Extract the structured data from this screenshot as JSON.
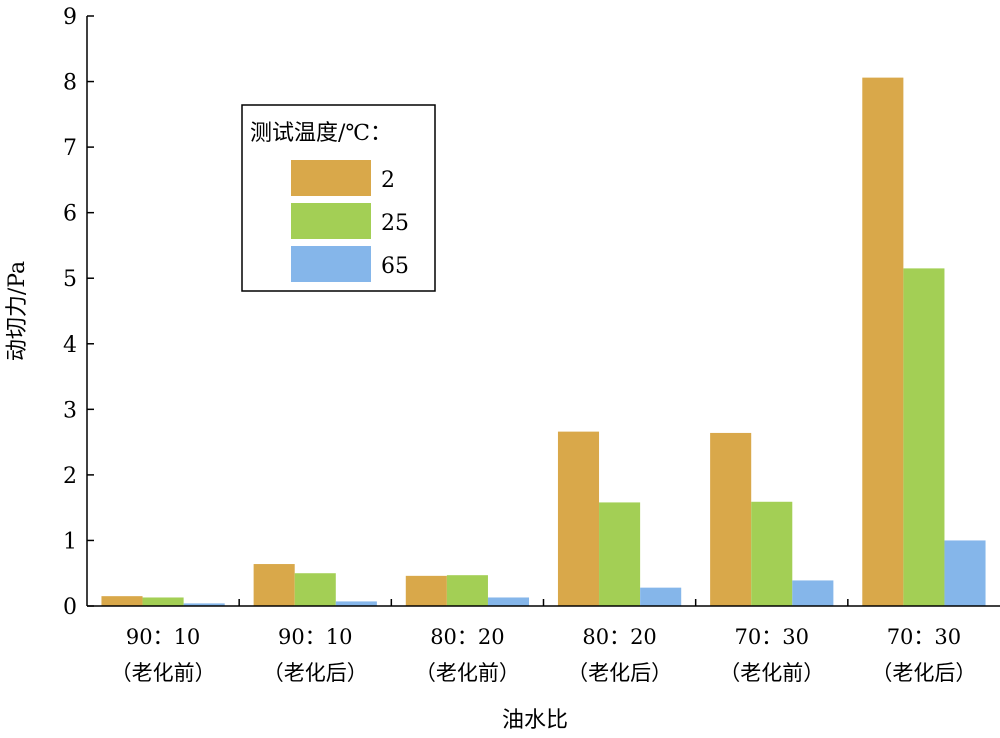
{
  "chart_data": {
    "type": "bar",
    "title": "",
    "xlabel": "油水比",
    "ylabel": "动切力/Pa",
    "ylim": [
      0,
      9
    ],
    "yticks": [
      "0",
      "1",
      "2",
      "3",
      "4",
      "5",
      "6",
      "7",
      "8",
      "9"
    ],
    "grid": false,
    "categories": [
      [
        "90：10",
        "（老化前）"
      ],
      [
        "90：10",
        "（老化后）"
      ],
      [
        "80：20",
        "（老化前）"
      ],
      [
        "80：20",
        "（老化后）"
      ],
      [
        "70：30",
        "（老化前）"
      ],
      [
        "70：30",
        "（老化后）"
      ]
    ],
    "legend": {
      "title": "测试温度/℃：",
      "placement": "upper-left"
    },
    "series": [
      {
        "name": "2",
        "color": "#D9A84A",
        "values": [
          0.15,
          0.64,
          0.46,
          2.66,
          2.64,
          8.06
        ]
      },
      {
        "name": "25",
        "color": "#A3CF55",
        "values": [
          0.13,
          0.5,
          0.47,
          1.58,
          1.59,
          5.15
        ]
      },
      {
        "name": "65",
        "color": "#85B6EA",
        "values": [
          0.04,
          0.07,
          0.13,
          0.28,
          0.39,
          1.0
        ]
      }
    ]
  }
}
